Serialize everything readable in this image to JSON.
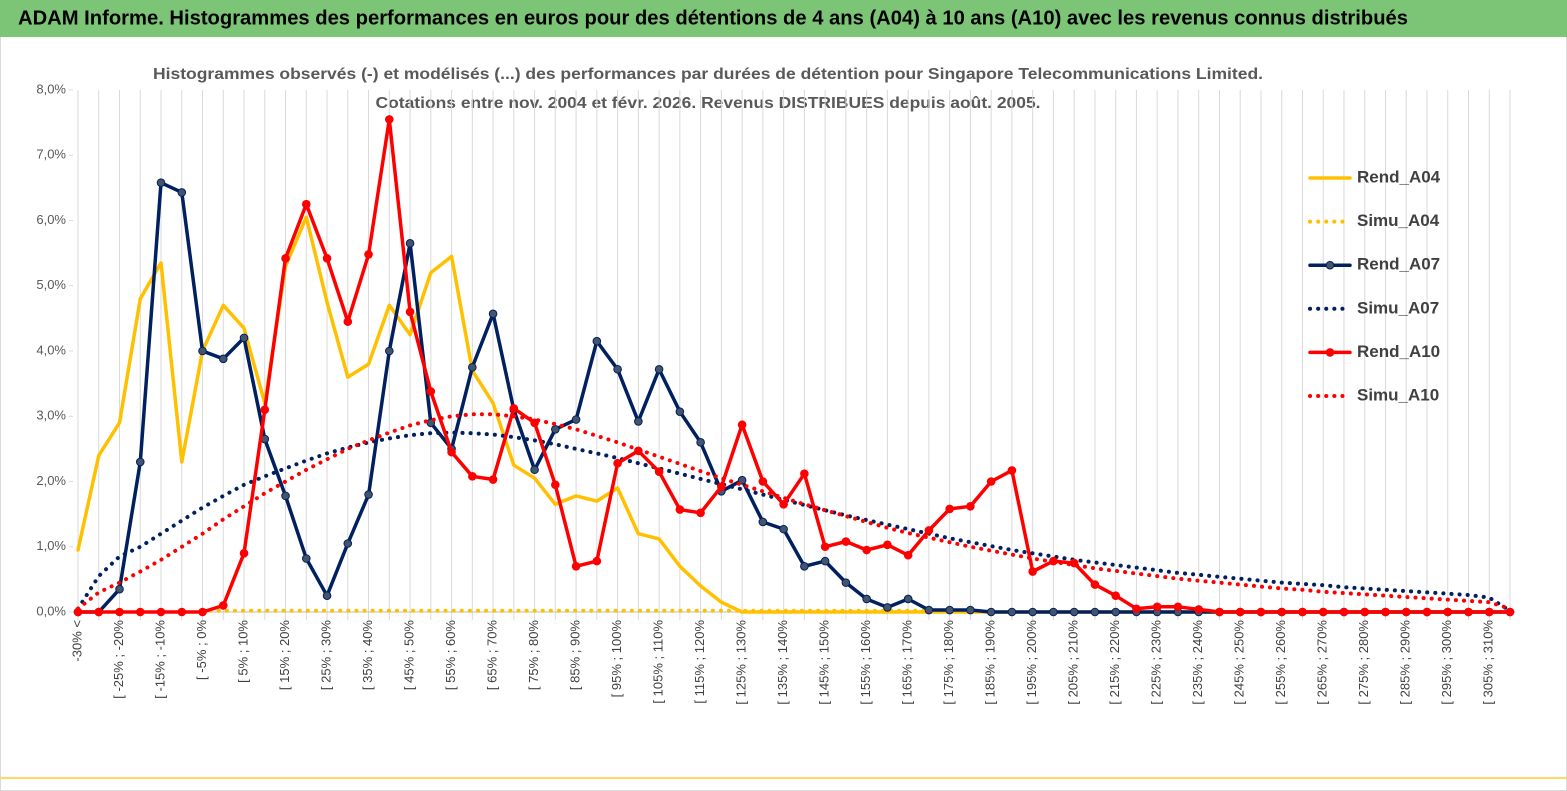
{
  "banner": "ADAM Informe. Histogrammes des performances en euros pour des détentions de 4 ans (A04) à 10 ans (A10) avec les revenus connus distribués",
  "chart_data": {
    "type": "line",
    "title": "Histogrammes observés (-) et modélisés (...) des performances par durées de détention pour Singapore Telecommunications Limited.",
    "subtitle": "Cotations entre nov. 2004 et févr. 2026. Revenus DISTRIBUES depuis août. 2005.",
    "categories": [
      "-30% <",
      null,
      "[ -25% ; -20%",
      null,
      "[ -15% ; -10%",
      null,
      "[ -5% ; 0%",
      null,
      "[ 5% ; 10%",
      null,
      "[ 15% ; 20%",
      null,
      "[ 25% ; 30%",
      null,
      "[ 35% ; 40%",
      null,
      "[ 45% ; 50%",
      null,
      "[ 55% ; 60%",
      null,
      "[ 65% ; 70%",
      null,
      "[ 75% ; 80%",
      null,
      "[ 85% ; 90%",
      null,
      "[ 95% ; 100%",
      null,
      "[ 105% ; 110%",
      null,
      "[ 115% ; 120%",
      null,
      "[ 125% ; 130%",
      null,
      "[ 135% ; 140%",
      null,
      "[ 145% ; 150%",
      null,
      "[ 155% ; 160%",
      null,
      "[ 165% ; 170%",
      null,
      "[ 175% ; 180%",
      null,
      "[ 185% ; 190%",
      null,
      "[ 195% ; 200%",
      null,
      "[ 205% ; 210%",
      null,
      "[ 215% ; 220%",
      null,
      "[ 225% ; 230%",
      null,
      "[ 235% ; 240%",
      null,
      "[ 245% ; 250%",
      null,
      "[ 255% ; 260%",
      null,
      "[ 265% ; 270%",
      null,
      "[ 275% ; 280%",
      null,
      "[ 285% ; 290%",
      null,
      "[ 295% ; 300%",
      null,
      "[ 305% ; 310%",
      null
    ],
    "ylim": [
      0,
      8
    ],
    "yticks": [
      {
        "value": 0,
        "label": "0,0%"
      },
      {
        "value": 1,
        "label": "1,0%"
      },
      {
        "value": 2,
        "label": "2,0%"
      },
      {
        "value": 3,
        "label": "3,0%"
      },
      {
        "value": 4,
        "label": "4,0%"
      },
      {
        "value": 5,
        "label": "5,0%"
      },
      {
        "value": 6,
        "label": "6,0%"
      },
      {
        "value": 7,
        "label": "7,0%"
      },
      {
        "value": 8,
        "label": "8,0%"
      }
    ],
    "xgrid": true,
    "legend": "right",
    "series": [
      {
        "name": "Rend_A04",
        "color": "#ffc000",
        "style": "solid",
        "marker": false,
        "values": [
          0.95,
          2.4,
          2.9,
          4.8,
          5.35,
          2.3,
          4.0,
          4.7,
          4.35,
          3.2,
          5.3,
          6.05,
          4.75,
          3.6,
          3.8,
          4.7,
          4.25,
          5.2,
          5.45,
          3.7,
          3.2,
          2.25,
          2.05,
          1.65,
          1.78,
          1.7,
          1.9,
          1.2,
          1.12,
          0.7,
          0.4,
          0.15,
          0,
          0,
          0,
          0,
          0,
          0,
          0,
          0,
          0,
          0,
          0,
          0,
          0,
          0,
          0,
          0,
          0,
          0,
          0,
          0,
          0,
          0,
          0,
          0,
          0,
          0,
          0,
          0,
          0,
          0,
          0,
          0,
          0,
          0,
          0,
          0,
          0,
          0
        ]
      },
      {
        "name": "Simu_A04",
        "color": "#ffc000",
        "style": "dotted",
        "marker": false,
        "values": [
          null,
          null,
          null,
          null,
          null,
          null,
          0.02,
          0.02,
          0.02,
          0.02,
          0.02,
          0.02,
          0.02,
          0.02,
          0.02,
          0.02,
          0.02,
          0.02,
          0.02,
          0.02,
          0.02,
          0.02,
          0.02,
          0.02,
          0.02,
          0.02,
          0.02,
          0.02,
          0.02,
          0.02,
          0.02,
          0.02,
          0.02,
          0.02,
          0.02,
          0.02,
          0.02,
          0.02,
          0.02,
          0.02,
          0.02,
          0.02,
          0.02,
          0.02,
          null,
          null,
          null,
          null,
          null,
          null,
          null,
          null,
          null,
          null,
          null,
          null,
          null,
          null,
          null,
          null,
          null,
          null,
          null,
          null,
          null,
          null,
          null,
          null,
          null,
          null
        ]
      },
      {
        "name": "Rend_A07",
        "color": "#002060",
        "style": "solid",
        "marker": true,
        "marker_color": "#44546a",
        "values": [
          0,
          0,
          0.35,
          2.3,
          6.58,
          6.43,
          4.0,
          3.88,
          4.2,
          2.65,
          1.78,
          0.82,
          0.25,
          1.05,
          1.8,
          4.0,
          5.65,
          2.9,
          2.5,
          3.75,
          4.57,
          3.1,
          2.18,
          2.8,
          2.95,
          4.15,
          3.72,
          2.92,
          3.72,
          3.07,
          2.6,
          1.85,
          2.02,
          1.38,
          1.27,
          0.7,
          0.78,
          0.45,
          0.2,
          0.07,
          0.2,
          0.03,
          0.03,
          0.03,
          0,
          0,
          0,
          0,
          0,
          0,
          0,
          0,
          0,
          0,
          0,
          0,
          0,
          0,
          0,
          0,
          0,
          0,
          0,
          0,
          0,
          0,
          0,
          0,
          0,
          0
        ]
      },
      {
        "name": "Simu_A07",
        "color": "#002060",
        "style": "dotted",
        "marker": false,
        "values": [
          0.05,
          0.55,
          0.85,
          1.0,
          1.2,
          1.4,
          1.6,
          1.78,
          1.95,
          2.08,
          2.2,
          2.32,
          2.43,
          2.52,
          2.6,
          2.66,
          2.71,
          2.74,
          2.75,
          2.74,
          2.72,
          2.68,
          2.63,
          2.57,
          2.5,
          2.43,
          2.36,
          2.28,
          2.2,
          2.12,
          2.04,
          1.96,
          1.88,
          1.8,
          1.72,
          1.64,
          1.56,
          1.48,
          1.41,
          1.34,
          1.27,
          1.2,
          1.13,
          1.07,
          1.01,
          0.95,
          0.9,
          0.85,
          0.8,
          0.76,
          0.72,
          0.68,
          0.64,
          0.6,
          0.57,
          0.54,
          0.51,
          0.48,
          0.45,
          0.43,
          0.41,
          0.38,
          0.36,
          0.34,
          0.32,
          0.3,
          0.28,
          0.26,
          0.22,
          0.02
        ]
      },
      {
        "name": "Rend_A10",
        "color": "#ff0000",
        "style": "solid",
        "marker": true,
        "marker_color": "#ff0000",
        "values": [
          0,
          0,
          0,
          0,
          0,
          0,
          0,
          0.1,
          0.9,
          3.1,
          5.42,
          6.25,
          5.42,
          4.45,
          5.48,
          7.55,
          4.6,
          3.38,
          2.45,
          2.08,
          2.03,
          3.12,
          2.9,
          1.95,
          0.7,
          0.78,
          2.28,
          2.47,
          2.15,
          1.57,
          1.52,
          1.92,
          2.87,
          2.0,
          1.65,
          2.12,
          1.0,
          1.08,
          0.95,
          1.03,
          0.87,
          1.25,
          1.58,
          1.62,
          2.0,
          2.17,
          0.62,
          0.78,
          0.75,
          0.42,
          0.25,
          0.05,
          0.08,
          0.08,
          0.04,
          0,
          0,
          0,
          0,
          0,
          0,
          0,
          0,
          0,
          0,
          0,
          0,
          0,
          0,
          0
        ]
      },
      {
        "name": "Simu_A10",
        "color": "#ff0000",
        "style": "dotted",
        "marker": false,
        "values": [
          0.05,
          0.3,
          0.45,
          0.62,
          0.8,
          1.0,
          1.2,
          1.42,
          1.62,
          1.82,
          2.0,
          2.18,
          2.34,
          2.5,
          2.63,
          2.75,
          2.86,
          2.94,
          3.0,
          3.03,
          3.03,
          3.0,
          2.95,
          2.88,
          2.8,
          2.7,
          2.6,
          2.49,
          2.38,
          2.27,
          2.16,
          2.05,
          1.95,
          1.85,
          1.75,
          1.65,
          1.56,
          1.47,
          1.38,
          1.29,
          1.21,
          1.14,
          1.07,
          1.0,
          0.94,
          0.88,
          0.82,
          0.77,
          0.72,
          0.67,
          0.63,
          0.59,
          0.55,
          0.51,
          0.48,
          0.45,
          0.42,
          0.39,
          0.36,
          0.34,
          0.31,
          0.29,
          0.27,
          0.25,
          0.23,
          0.21,
          0.19,
          0.17,
          0.15,
          0.05
        ]
      }
    ]
  }
}
